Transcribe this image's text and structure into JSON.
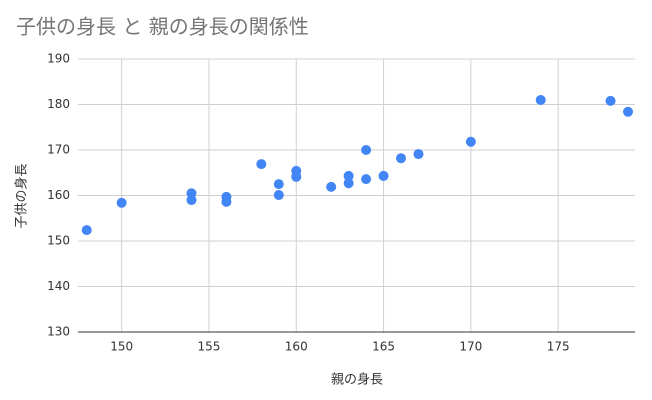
{
  "chart_data": {
    "type": "scatter",
    "title": "子供の身長 と 親の身長の関係性",
    "x_label": "親の身長",
    "y_label": "子供の身長",
    "x": [
      148,
      150,
      154,
      154,
      156,
      156,
      158,
      159,
      159,
      160,
      160,
      162,
      163,
      163,
      164,
      164,
      165,
      166,
      167,
      170,
      174,
      178,
      179
    ],
    "values": [
      152.4,
      158.4,
      160.5,
      159.0,
      159.7,
      158.6,
      166.9,
      162.5,
      160.1,
      165.4,
      164.1,
      161.9,
      164.3,
      162.7,
      170.0,
      163.6,
      164.3,
      168.2,
      169.1,
      171.8,
      181.0,
      180.8,
      178.4
    ],
    "color": "#4285f4",
    "xlim": [
      147.5,
      179.4
    ],
    "xticks": [
      150,
      155,
      160,
      165,
      170,
      175
    ],
    "ylim": [
      130,
      190
    ],
    "yticks": [
      130,
      140,
      150,
      160,
      170,
      180,
      190
    ],
    "grid": true
  }
}
